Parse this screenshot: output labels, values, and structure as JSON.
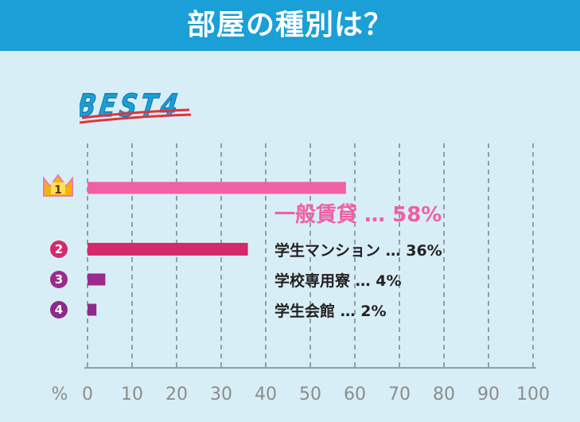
{
  "header": {
    "title": "部屋の種別は？"
  },
  "badge": {
    "label": "BEST4"
  },
  "colors": {
    "header_bg": "#1a9fd6",
    "background": "#d8eef6",
    "bar_1": "#f25fa4",
    "bar_2": "#d42a6b",
    "bar_3": "#9b2a8e",
    "bar_4": "#8e2a8a",
    "label_1": "#ef5fa6",
    "underline": "#e3323c"
  },
  "chart_data": {
    "type": "bar",
    "orientation": "horizontal",
    "xlim": [
      0,
      100
    ],
    "ticks": [
      0,
      10,
      20,
      30,
      40,
      50,
      60,
      70,
      80,
      90,
      100
    ],
    "unit_label": "%",
    "grid": true,
    "categories": [
      "一般賃貸",
      "学生マンション",
      "学校専用寮",
      "学生会館"
    ],
    "values": [
      58,
      36,
      4,
      2
    ],
    "value_labels": [
      "58%",
      "36%",
      "4%",
      "2%"
    ],
    "ranks": [
      "1",
      "2",
      "3",
      "4"
    ],
    "separator": "…"
  }
}
